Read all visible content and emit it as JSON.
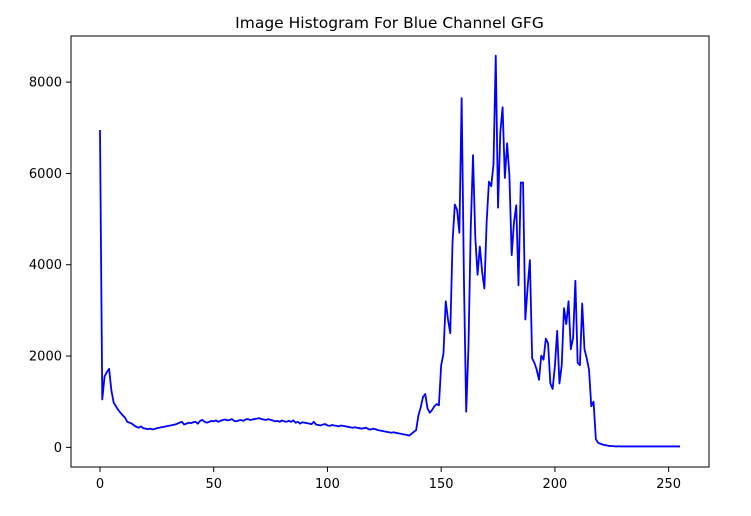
{
  "chart_data": {
    "type": "line",
    "title": "Image Histogram For Blue Channel GFG",
    "xlabel": "",
    "ylabel": "",
    "xlim": [
      -12.75,
      267.75
    ],
    "ylim": [
      -430,
      9010
    ],
    "grid": false,
    "legend": "none",
    "line_color": "#0000ff",
    "x_ticks": [
      0,
      50,
      100,
      150,
      200,
      250
    ],
    "y_ticks": [
      0,
      2000,
      4000,
      6000,
      8000
    ],
    "x_tick_labels": [
      "0",
      "50",
      "100",
      "150",
      "200",
      "250"
    ],
    "y_tick_labels": [
      "0",
      "2000",
      "4000",
      "6000",
      "8000"
    ],
    "series": [
      {
        "values": [
          6950,
          1050,
          1550,
          1650,
          1720,
          1250,
          980,
          900,
          820,
          760,
          700,
          650,
          560,
          540,
          520,
          480,
          450,
          430,
          460,
          420,
          410,
          400,
          410,
          395,
          400,
          420,
          430,
          440,
          450,
          460,
          470,
          480,
          490,
          500,
          520,
          540,
          560,
          500,
          520,
          540,
          530,
          550,
          560,
          520,
          580,
          600,
          560,
          540,
          560,
          580,
          570,
          590,
          560,
          580,
          600,
          610,
          590,
          600,
          620,
          580,
          570,
          590,
          600,
          580,
          610,
          620,
          600,
          610,
          620,
          630,
          640,
          620,
          610,
          600,
          620,
          600,
          590,
          570,
          580,
          560,
          590,
          570,
          560,
          580,
          560,
          590,
          540,
          560,
          520,
          550,
          540,
          530,
          520,
          510,
          560,
          500,
          490,
          480,
          500,
          510,
          480,
          470,
          490,
          480,
          470,
          460,
          480,
          470,
          460,
          450,
          440,
          430,
          440,
          430,
          420,
          410,
          420,
          430,
          400,
          390,
          410,
          400,
          380,
          370,
          360,
          350,
          340,
          330,
          320,
          330,
          320,
          310,
          300,
          290,
          280,
          270,
          260,
          300,
          340,
          380,
          700,
          880,
          1100,
          1170,
          850,
          760,
          820,
          900,
          950,
          920,
          1800,
          2050,
          3200,
          2800,
          2500,
          4500,
          5320,
          5200,
          4700,
          7650,
          3700,
          780,
          2200,
          4800,
          6400,
          4600,
          3780,
          4400,
          3850,
          3480,
          4950,
          5820,
          5720,
          6200,
          8580,
          5250,
          6900,
          7450,
          5900,
          6660,
          5950,
          4210,
          4920,
          5300,
          3550,
          5800,
          5800,
          2800,
          3500,
          4100,
          1950,
          1850,
          1700,
          1480,
          2010,
          1920,
          2380,
          2280,
          1400,
          1280,
          1780,
          2550,
          1400,
          1800,
          3050,
          2700,
          3200,
          2150,
          2400,
          3650,
          1850,
          1800,
          3150,
          2150,
          1950,
          1700,
          900,
          1000,
          180,
          100,
          80,
          60,
          50,
          40,
          30,
          30,
          25,
          20,
          25,
          20,
          20,
          20,
          20,
          20,
          20,
          20,
          20,
          20,
          20,
          20,
          20,
          20,
          20,
          20,
          20,
          20,
          20,
          20,
          20,
          20,
          20,
          20,
          20,
          20,
          20,
          20
        ]
      }
    ]
  }
}
